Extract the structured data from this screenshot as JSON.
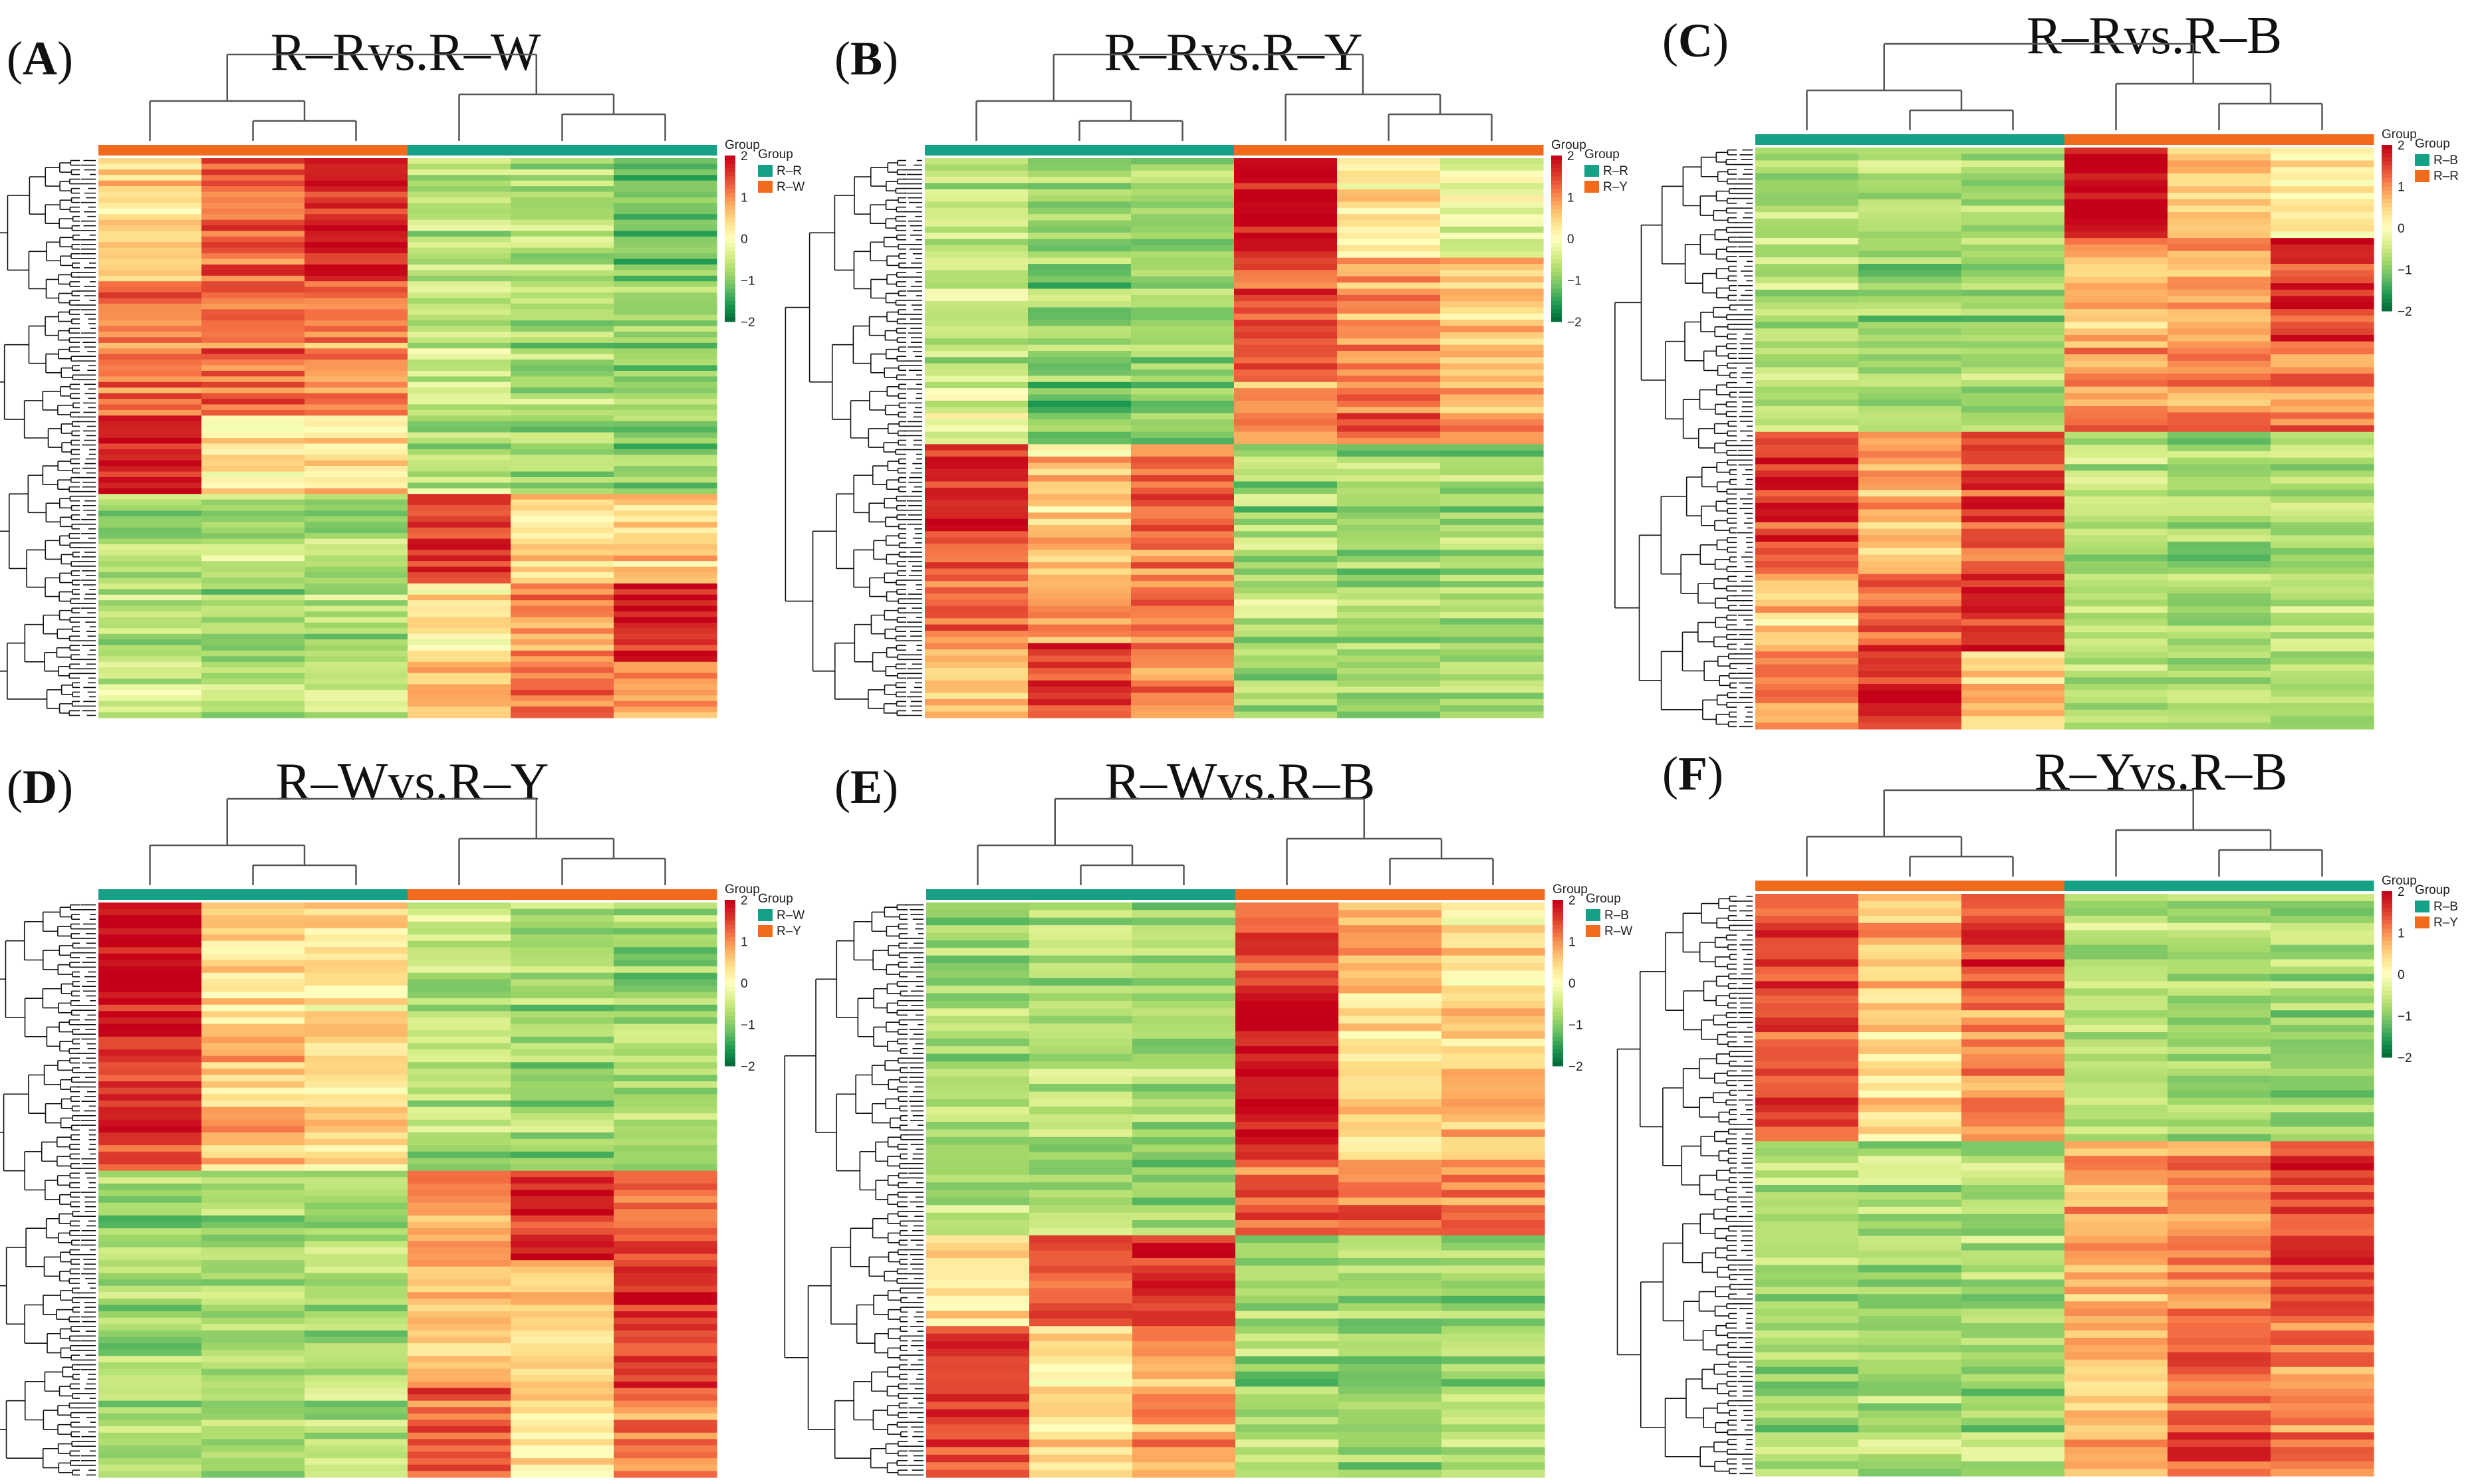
{
  "chart_data": [
    {
      "type": "heatmap",
      "id": "A",
      "title": "R–Rvs.R–W",
      "columns": [
        "R–W",
        "R–W",
        "R–W",
        "R–R",
        "R–R",
        "R–R"
      ],
      "legend": {
        "title": "Group",
        "groups": [
          {
            "name": "R–R",
            "color": "#16a085"
          },
          {
            "name": "R–W",
            "color": "#f26b1d"
          }
        ]
      },
      "scale": {
        "min": -2,
        "max": 2,
        "ticks": [
          "2",
          "1",
          "0",
          "−1",
          "−2"
        ],
        "colors": [
          "#006837",
          "#1a9850",
          "#66bd63",
          "#a6d96a",
          "#d9ef8b",
          "#ffffbf",
          "#fee08b",
          "#fdae61",
          "#f46d43",
          "#d73027",
          "#c40018"
        ]
      },
      "row_blocks": [
        {
          "rows": 22,
          "values": [
            0.5,
            1.3,
            1.8,
            -0.7,
            -0.7,
            -1.1
          ]
        },
        {
          "rows": 24,
          "values": [
            1.0,
            1.2,
            1.0,
            -0.6,
            -0.8,
            -0.9
          ]
        },
        {
          "rows": 14,
          "values": [
            1.8,
            0.2,
            0.3,
            -0.7,
            -0.9,
            -1.0
          ]
        },
        {
          "rows": 16,
          "values": [
            -0.8,
            -0.7,
            -0.8,
            1.6,
            0.4,
            0.5
          ]
        },
        {
          "rows": 14,
          "values": [
            -0.7,
            -0.8,
            -0.7,
            0.3,
            0.9,
            1.8
          ]
        },
        {
          "rows": 10,
          "values": [
            -0.6,
            -0.7,
            -0.6,
            0.6,
            1.1,
            0.9
          ]
        }
      ]
    },
    {
      "type": "heatmap",
      "id": "B",
      "title": "R–Rvs.R–Y",
      "columns": [
        "R–R",
        "R–R",
        "R–R",
        "R–Y",
        "R–Y",
        "R–Y"
      ],
      "legend": {
        "title": "Group",
        "groups": [
          {
            "name": "R–R",
            "color": "#16a085"
          },
          {
            "name": "R–Y",
            "color": "#f26b1d"
          }
        ]
      },
      "scale": {
        "min": -2,
        "max": 2,
        "ticks": [
          "2",
          "1",
          "0",
          "−1",
          "−2"
        ],
        "colors": [
          "#006837",
          "#1a9850",
          "#66bd63",
          "#a6d96a",
          "#d9ef8b",
          "#ffffbf",
          "#fee08b",
          "#fdae61",
          "#f46d43",
          "#d73027",
          "#c40018"
        ]
      },
      "row_blocks": [
        {
          "rows": 16,
          "values": [
            -0.5,
            -0.9,
            -0.9,
            1.9,
            0.3,
            -0.2
          ]
        },
        {
          "rows": 20,
          "values": [
            -0.6,
            -1.0,
            -0.9,
            1.3,
            0.9,
            0.5
          ]
        },
        {
          "rows": 10,
          "values": [
            -0.3,
            -1.3,
            -1.1,
            0.9,
            1.1,
            0.8
          ]
        },
        {
          "rows": 14,
          "values": [
            1.7,
            0.5,
            1.2,
            -0.8,
            -0.8,
            -0.9
          ]
        },
        {
          "rows": 18,
          "values": [
            1.2,
            0.8,
            1.0,
            -0.7,
            -0.9,
            -0.8
          ]
        },
        {
          "rows": 12,
          "values": [
            0.7,
            1.6,
            1.0,
            -0.7,
            -0.8,
            -0.7
          ]
        }
      ]
    },
    {
      "type": "heatmap",
      "id": "C",
      "title": "R–Rvs.R–B",
      "columns": [
        "R–B",
        "R–B",
        "R–B",
        "R–R",
        "R–R",
        "R–R"
      ],
      "legend": {
        "title": "Group",
        "groups": [
          {
            "name": "R–B",
            "color": "#16a085"
          },
          {
            "name": "R–R",
            "color": "#f26b1d"
          }
        ]
      },
      "scale": {
        "min": -2,
        "max": 2,
        "ticks": [
          "2",
          "1",
          "0",
          "−1",
          "−2"
        ],
        "colors": [
          "#006837",
          "#1a9850",
          "#66bd63",
          "#a6d96a",
          "#d9ef8b",
          "#ffffbf",
          "#fee08b",
          "#fdae61",
          "#f46d43",
          "#d73027",
          "#c40018"
        ]
      },
      "row_blocks": [
        {
          "rows": 14,
          "values": [
            -0.7,
            -0.8,
            -0.8,
            1.9,
            0.5,
            0.2
          ]
        },
        {
          "rows": 16,
          "values": [
            -0.7,
            -0.8,
            -0.8,
            0.7,
            0.8,
            1.6
          ]
        },
        {
          "rows": 14,
          "values": [
            -0.7,
            -0.8,
            -0.8,
            0.9,
            1.0,
            1.0
          ]
        },
        {
          "rows": 22,
          "values": [
            1.5,
            0.7,
            1.4,
            -0.7,
            -0.8,
            -0.8
          ]
        },
        {
          "rows": 12,
          "values": [
            0.5,
            1.3,
            1.6,
            -0.7,
            -0.8,
            -0.7
          ]
        },
        {
          "rows": 12,
          "values": [
            1.0,
            1.7,
            0.6,
            -0.7,
            -0.8,
            -0.7
          ]
        }
      ]
    },
    {
      "type": "heatmap",
      "id": "D",
      "title": "R–Wvs.R–Y",
      "columns": [
        "R–W",
        "R–W",
        "R–W",
        "R–Y",
        "R–Y",
        "R–Y"
      ],
      "legend": {
        "title": "Group",
        "groups": [
          {
            "name": "R–W",
            "color": "#16a085"
          },
          {
            "name": "R–Y",
            "color": "#f26b1d"
          }
        ]
      },
      "scale": {
        "min": -2,
        "max": 2,
        "ticks": [
          "2",
          "1",
          "0",
          "−1",
          "−2"
        ],
        "colors": [
          "#006837",
          "#1a9850",
          "#66bd63",
          "#a6d96a",
          "#d9ef8b",
          "#ffffbf",
          "#fee08b",
          "#fdae61",
          "#f46d43",
          "#d73027",
          "#c40018"
        ]
      },
      "row_blocks": [
        {
          "rows": 20,
          "values": [
            1.9,
            0.3,
            0.3,
            -0.7,
            -0.8,
            -0.9
          ]
        },
        {
          "rows": 22,
          "values": [
            1.5,
            0.6,
            0.4,
            -0.7,
            -0.9,
            -0.8
          ]
        },
        {
          "rows": 14,
          "values": [
            -0.9,
            -0.8,
            -0.8,
            0.9,
            1.6,
            1.2
          ]
        },
        {
          "rows": 20,
          "values": [
            -0.8,
            -0.8,
            -0.7,
            0.6,
            0.5,
            1.6
          ]
        },
        {
          "rows": 14,
          "values": [
            -0.7,
            -0.8,
            -0.7,
            1.3,
            0.3,
            1.0
          ]
        }
      ]
    },
    {
      "type": "heatmap",
      "id": "E",
      "title": "R–Wvs.R–B",
      "columns": [
        "R–B",
        "R–B",
        "R–B",
        "R–W",
        "R–W",
        "R–W"
      ],
      "legend": {
        "title": "Group",
        "groups": [
          {
            "name": "R–B",
            "color": "#16a085"
          },
          {
            "name": "R–W",
            "color": "#f26b1d"
          }
        ]
      },
      "scale": {
        "min": -2,
        "max": 2,
        "ticks": [
          "2",
          "1",
          "0",
          "−1",
          "−2"
        ],
        "colors": [
          "#006837",
          "#1a9850",
          "#66bd63",
          "#a6d96a",
          "#d9ef8b",
          "#ffffbf",
          "#fee08b",
          "#fdae61",
          "#f46d43",
          "#d73027",
          "#c40018"
        ]
      },
      "row_blocks": [
        {
          "rows": 12,
          "values": [
            -0.8,
            -0.7,
            -0.8,
            1.4,
            0.8,
            0.3
          ]
        },
        {
          "rows": 22,
          "values": [
            -0.8,
            -0.7,
            -0.8,
            1.9,
            0.4,
            0.6
          ]
        },
        {
          "rows": 10,
          "values": [
            -0.7,
            -0.7,
            -0.8,
            1.3,
            1.2,
            1.2
          ]
        },
        {
          "rows": 12,
          "values": [
            0.4,
            1.4,
            1.7,
            -0.8,
            -0.8,
            -0.8
          ]
        },
        {
          "rows": 20,
          "values": [
            1.5,
            0.4,
            0.9,
            -0.8,
            -0.9,
            -0.7
          ]
        }
      ]
    },
    {
      "type": "heatmap",
      "id": "F",
      "title": "R–Yvs.R–B",
      "columns": [
        "R–Y",
        "R–Y",
        "R–Y",
        "R–B",
        "R–B",
        "R–B"
      ],
      "legend": {
        "title": "Group",
        "groups": [
          {
            "name": "R–B",
            "color": "#16a085"
          },
          {
            "name": "R–Y",
            "color": "#f26b1d"
          }
        ]
      },
      "scale": {
        "min": -2,
        "max": 2,
        "ticks": [
          "2",
          "1",
          "0",
          "−1",
          "−2"
        ],
        "colors": [
          "#006837",
          "#1a9850",
          "#66bd63",
          "#a6d96a",
          "#d9ef8b",
          "#ffffbf",
          "#fee08b",
          "#fdae61",
          "#f46d43",
          "#d73027",
          "#c40018"
        ]
      },
      "row_blocks": [
        {
          "rows": 14,
          "values": [
            1.3,
            0.6,
            1.5,
            -0.7,
            -0.8,
            -0.8
          ]
        },
        {
          "rows": 20,
          "values": [
            1.4,
            0.5,
            1.0,
            -0.6,
            -0.8,
            -0.8
          ]
        },
        {
          "rows": 24,
          "values": [
            -0.8,
            -0.8,
            -0.8,
            0.8,
            1.0,
            1.5
          ]
        },
        {
          "rows": 22,
          "values": [
            -0.8,
            -0.8,
            -0.8,
            0.6,
            1.3,
            1.0
          ]
        }
      ]
    }
  ]
}
